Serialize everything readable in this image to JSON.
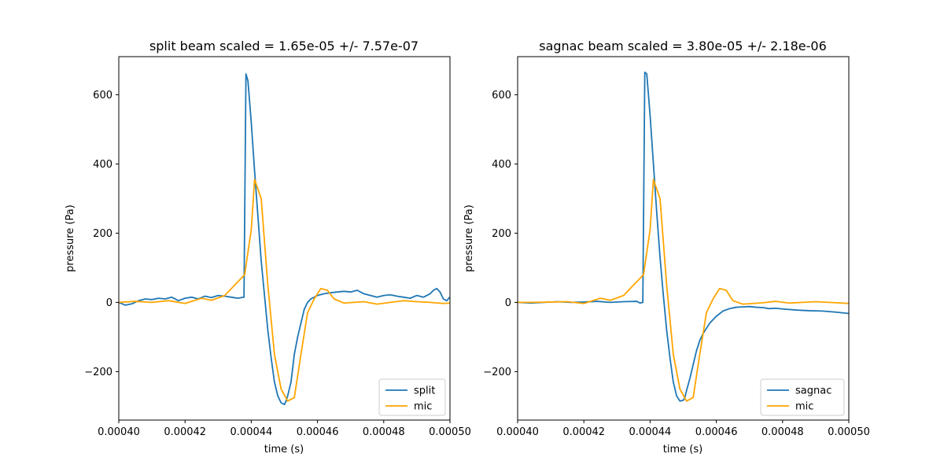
{
  "chart_data": [
    {
      "type": "line",
      "title": "split beam scaled = 1.65e-05 +/- 7.57e-07",
      "xlabel": "time (s)",
      "ylabel": "pressure (Pa)",
      "xlim": [
        0.0004,
        0.0005
      ],
      "ylim": [
        -340,
        710
      ],
      "xticks": [
        "0.00040",
        "0.00042",
        "0.00044",
        "0.00046",
        "0.00048",
        "0.00050"
      ],
      "xtick_values": [
        0.0004,
        0.00042,
        0.00044,
        0.00046,
        0.00048,
        0.0005
      ],
      "yticks": [
        "−200",
        "0",
        "200",
        "400",
        "600"
      ],
      "ytick_values": [
        -200,
        0,
        200,
        400,
        600
      ],
      "grid": false,
      "legend_position": "lower-right",
      "series": [
        {
          "name": "split",
          "color": "#1f77b4",
          "x": [
            0.0004,
            0.000402,
            0.000404,
            0.000406,
            0.000408,
            0.00041,
            0.000412,
            0.000414,
            0.000416,
            0.000418,
            0.00042,
            0.000422,
            0.000424,
            0.000426,
            0.000428,
            0.00043,
            0.000432,
            0.000434,
            0.000436,
            0.000437,
            0.0004378,
            0.0004384,
            0.000439,
            0.00044,
            0.000441,
            0.000442,
            0.000443,
            0.000444,
            0.000445,
            0.000446,
            0.000447,
            0.000448,
            0.000449,
            0.00045,
            0.0004505,
            0.000451,
            0.000452,
            0.000453,
            0.000454,
            0.000455,
            0.000456,
            0.000457,
            0.000458,
            0.000459,
            0.00046,
            0.000462,
            0.000464,
            0.000466,
            0.000468,
            0.00047,
            0.000472,
            0.000474,
            0.000476,
            0.000478,
            0.00048,
            0.000482,
            0.000484,
            0.000486,
            0.000488,
            0.00049,
            0.000492,
            0.000494,
            0.000495,
            0.000496,
            0.000497,
            0.000498,
            0.000499,
            0.0005
          ],
          "y": [
            0,
            -8,
            -4,
            5,
            10,
            8,
            12,
            10,
            15,
            5,
            12,
            15,
            10,
            18,
            14,
            20,
            18,
            15,
            12,
            14,
            15,
            660,
            640,
            520,
            380,
            250,
            120,
            20,
            -80,
            -160,
            -230,
            -270,
            -290,
            -295,
            -285,
            -270,
            -230,
            -150,
            -100,
            -60,
            -20,
            0,
            10,
            15,
            20,
            25,
            28,
            30,
            32,
            30,
            35,
            25,
            20,
            15,
            20,
            22,
            18,
            15,
            12,
            20,
            15,
            25,
            35,
            40,
            30,
            10,
            5,
            15
          ]
        },
        {
          "name": "mic",
          "color": "#ffa500",
          "x": [
            0.0004,
            0.000405,
            0.00041,
            0.000415,
            0.00042,
            0.000425,
            0.000428,
            0.000432,
            0.000435,
            0.000437,
            0.000438,
            0.00044,
            0.000441,
            0.000443,
            0.000445,
            0.000447,
            0.000449,
            0.000451,
            0.000453,
            0.000455,
            0.000457,
            0.000459,
            0.000461,
            0.000463,
            0.000465,
            0.000468,
            0.000471,
            0.000474,
            0.000478,
            0.000482,
            0.000486,
            0.00049,
            0.000494,
            0.000498,
            0.0005
          ],
          "y": [
            0,
            3,
            0,
            5,
            -3,
            12,
            6,
            20,
            50,
            70,
            80,
            210,
            355,
            300,
            50,
            -150,
            -250,
            -285,
            -275,
            -150,
            -30,
            10,
            40,
            35,
            10,
            -2,
            0,
            2,
            -5,
            0,
            5,
            2,
            0,
            -3,
            -2
          ]
        }
      ]
    },
    {
      "type": "line",
      "title": "sagnac beam scaled = 3.80e-05 +/- 2.18e-06",
      "xlabel": "time (s)",
      "ylabel": "pressure (Pa)",
      "xlim": [
        0.0004,
        0.0005
      ],
      "ylim": [
        -340,
        710
      ],
      "xticks": [
        "0.00040",
        "0.00042",
        "0.00044",
        "0.00046",
        "0.00048",
        "0.00050"
      ],
      "xtick_values": [
        0.0004,
        0.00042,
        0.00044,
        0.00046,
        0.00048,
        0.0005
      ],
      "yticks": [
        "−200",
        "0",
        "200",
        "400",
        "600"
      ],
      "ytick_values": [
        -200,
        0,
        200,
        400,
        600
      ],
      "grid": false,
      "legend_position": "lower-right",
      "series": [
        {
          "name": "sagnac",
          "color": "#1f77b4",
          "x": [
            0.0004,
            0.000404,
            0.000408,
            0.000412,
            0.000416,
            0.00042,
            0.000424,
            0.000428,
            0.000432,
            0.000436,
            0.000437,
            0.0004378,
            0.0004384,
            0.000439,
            0.00044,
            0.000441,
            0.000442,
            0.000443,
            0.000444,
            0.000445,
            0.000446,
            0.000447,
            0.000448,
            0.000449,
            0.00045,
            0.0004505,
            0.000451,
            0.000452,
            0.000453,
            0.000454,
            0.000455,
            0.000456,
            0.000457,
            0.000458,
            0.000459,
            0.00046,
            0.000462,
            0.000464,
            0.000466,
            0.000468,
            0.00047,
            0.000472,
            0.000474,
            0.000476,
            0.000478,
            0.00048,
            0.000484,
            0.000488,
            0.000492,
            0.000496,
            0.000498,
            0.0005
          ],
          "y": [
            0,
            -2,
            0,
            2,
            0,
            1,
            3,
            0,
            2,
            3,
            -2,
            0,
            665,
            660,
            540,
            400,
            260,
            130,
            20,
            -80,
            -160,
            -230,
            -270,
            -285,
            -283,
            -275,
            -255,
            -220,
            -180,
            -140,
            -110,
            -90,
            -75,
            -60,
            -50,
            -40,
            -25,
            -18,
            -14,
            -13,
            -12,
            -14,
            -15,
            -18,
            -17,
            -19,
            -22,
            -24,
            -25,
            -28,
            -30,
            -32
          ]
        },
        {
          "name": "mic",
          "color": "#ffa500",
          "x": [
            0.0004,
            0.000405,
            0.00041,
            0.000415,
            0.00042,
            0.000425,
            0.000428,
            0.000432,
            0.000435,
            0.000437,
            0.000438,
            0.00044,
            0.000441,
            0.000443,
            0.000445,
            0.000447,
            0.000449,
            0.000451,
            0.000453,
            0.000455,
            0.000457,
            0.000459,
            0.000461,
            0.000463,
            0.000465,
            0.000468,
            0.000471,
            0.000474,
            0.000478,
            0.000482,
            0.000486,
            0.00049,
            0.000494,
            0.000498,
            0.0005
          ],
          "y": [
            0,
            0,
            1,
            2,
            -3,
            12,
            6,
            20,
            50,
            70,
            80,
            210,
            355,
            300,
            50,
            -150,
            -250,
            -285,
            -275,
            -150,
            -30,
            10,
            40,
            35,
            5,
            -5,
            -3,
            -1,
            3,
            -2,
            0,
            2,
            0,
            -2,
            -3
          ]
        }
      ]
    }
  ]
}
